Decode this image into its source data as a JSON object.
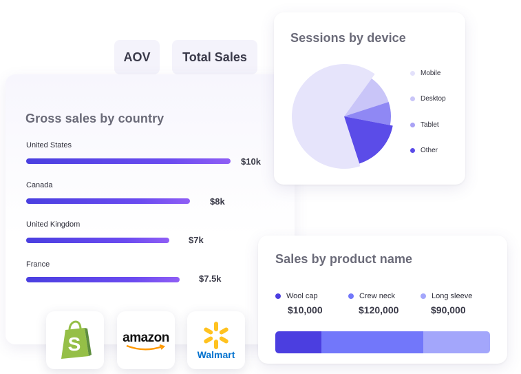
{
  "metrics": {
    "aov_label": "AOV",
    "total_sales_label": "Total Sales"
  },
  "gross_sales": {
    "title": "Gross sales by country",
    "rows": [
      {
        "country": "United States",
        "value": "$10k",
        "amount": 10
      },
      {
        "country": "Canada",
        "value": "$8k",
        "amount": 8
      },
      {
        "country": "United Kingdom",
        "value": "$7k",
        "amount": 7
      },
      {
        "country": "France",
        "value": "$7.5k",
        "amount": 7.5
      }
    ]
  },
  "sessions": {
    "title": "Sessions by device",
    "legend": [
      {
        "label": "Mobile",
        "color": "#e6e4fb"
      },
      {
        "label": "Desktop",
        "color": "#c9c5f8"
      },
      {
        "label": "Tablet",
        "color": "#a9a2f5"
      },
      {
        "label": "Other",
        "color": "#5b4ce8"
      }
    ]
  },
  "chart_data": {
    "type": "pie",
    "title": "Sessions by device",
    "categories": [
      "Mobile",
      "Desktop",
      "Tablet",
      "Other"
    ],
    "values": [
      65,
      10,
      8,
      17
    ],
    "colors": [
      "#e6e4fb",
      "#c9c5f8",
      "#8f88f4",
      "#5b4ce8"
    ]
  },
  "products": {
    "title": "Sales by product name",
    "items": [
      {
        "label": "Wool cap",
        "value": "$10,000",
        "amount": 10000,
        "color": "#4b3ee0"
      },
      {
        "label": "Crew neck",
        "value": "$120,000",
        "amount": 120000,
        "color": "#7277fa"
      },
      {
        "label": "Long sleeve",
        "value": "$90,000",
        "amount": 90000,
        "color": "#a3a6fb"
      }
    ]
  },
  "logos": {
    "amazon_text": "amazon",
    "walmart_text": "Walmart"
  }
}
